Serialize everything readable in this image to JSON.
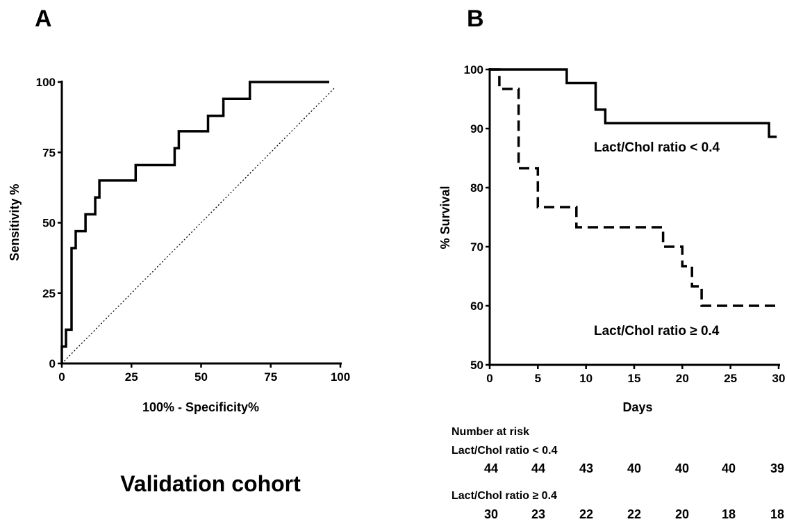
{
  "chart_data": [
    {
      "panel": "A",
      "type": "line",
      "xlabel": "100% - Specificity%",
      "ylabel": "Sensitivity %",
      "xlim": [
        0,
        100
      ],
      "ylim": [
        0,
        100
      ],
      "xticks": [
        "0",
        "25",
        "50",
        "75",
        "100"
      ],
      "yticks": [
        "0",
        "25",
        "50",
        "75",
        "100"
      ],
      "grid": false,
      "series": [
        {
          "style": "solid",
          "points": [
            [
              0,
              0
            ],
            [
              0,
              6
            ],
            [
              1.5,
              6
            ],
            [
              1.5,
              12
            ],
            [
              3.5,
              12
            ],
            [
              3.5,
              41
            ],
            [
              5,
              41
            ],
            [
              5,
              47
            ],
            [
              8.5,
              47
            ],
            [
              8.5,
              53
            ],
            [
              12,
              53
            ],
            [
              12,
              59
            ],
            [
              13.5,
              59
            ],
            [
              13.5,
              65
            ],
            [
              26.5,
              65
            ],
            [
              26.5,
              70.5
            ],
            [
              40.5,
              70.5
            ],
            [
              40.5,
              76.5
            ],
            [
              42,
              76.5
            ],
            [
              42,
              82.5
            ],
            [
              52.5,
              82.5
            ],
            [
              52.5,
              88
            ],
            [
              58,
              88
            ],
            [
              58,
              94
            ],
            [
              67.5,
              94
            ],
            [
              67.5,
              100
            ],
            [
              96,
              100
            ]
          ]
        },
        {
          "style": "dotted",
          "points": [
            [
              0,
              0
            ],
            [
              98,
              98
            ]
          ]
        }
      ],
      "caption": "Validation cohort"
    },
    {
      "panel": "B",
      "type": "line",
      "xlabel": "Days",
      "ylabel": "% Survival",
      "xlim": [
        0,
        30
      ],
      "ylim": [
        50,
        100
      ],
      "xticks": [
        "0",
        "5",
        "10",
        "15",
        "20",
        "25",
        "30"
      ],
      "yticks": [
        "50",
        "60",
        "70",
        "80",
        "90",
        "100"
      ],
      "grid": false,
      "series": [
        {
          "name": "Lact/Chol ratio < 0.4",
          "style": "solid",
          "points": [
            [
              0,
              100
            ],
            [
              8,
              100
            ],
            [
              8,
              97.7
            ],
            [
              11,
              97.7
            ],
            [
              11,
              93.2
            ],
            [
              12,
              93.2
            ],
            [
              12,
              90.9
            ],
            [
              29,
              90.9
            ],
            [
              29,
              88.6
            ],
            [
              29.8,
              88.6
            ]
          ]
        },
        {
          "name": "Lact/Chol ratio ≥ 0.4",
          "style": "dashed",
          "points": [
            [
              0,
              100
            ],
            [
              1,
              100
            ],
            [
              1,
              96.7
            ],
            [
              3,
              96.7
            ],
            [
              3,
              83.3
            ],
            [
              5,
              83.3
            ],
            [
              5,
              76.7
            ],
            [
              9,
              76.7
            ],
            [
              9,
              73.3
            ],
            [
              18,
              73.3
            ],
            [
              18,
              70
            ],
            [
              20,
              70
            ],
            [
              20,
              66.7
            ],
            [
              21,
              66.7
            ],
            [
              21,
              63.3
            ],
            [
              22,
              63.3
            ],
            [
              22,
              60
            ],
            [
              29.8,
              60
            ]
          ]
        }
      ],
      "number_at_risk": {
        "title": "Number at risk",
        "days": [
          0,
          5,
          10,
          15,
          20,
          25,
          30
        ],
        "groups": [
          {
            "label": "Lact/Chol ratio < 0.4",
            "values": [
              44,
              44,
              43,
              40,
              40,
              40,
              39
            ]
          },
          {
            "label": "Lact/Chol ratio ≥ 0.4",
            "values": [
              30,
              23,
              22,
              22,
              20,
              18,
              18
            ]
          }
        ]
      }
    }
  ]
}
